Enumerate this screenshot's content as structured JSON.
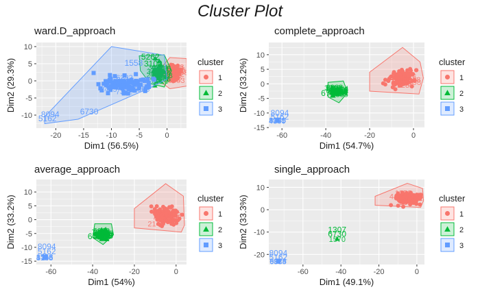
{
  "title": "Cluster Plot",
  "colors": {
    "1": "#F8766D",
    "2": "#00BA38",
    "3": "#619CFF",
    "panel_bg": "#EBEBEB",
    "grid": "#FFFFFF"
  },
  "chart_data": [
    {
      "type": "scatter",
      "title": "ward.D_approach",
      "xlabel": "Dim1 (56.5%)",
      "ylabel": "Dim2 (29.3%)",
      "xlim": [
        -23.5,
        3.5
      ],
      "ylim": [
        -13.8,
        11.2
      ],
      "xticks": [
        -20,
        -15,
        -10,
        -5,
        0
      ],
      "yticks": [
        -10,
        -5,
        0,
        5,
        10
      ],
      "grid": true,
      "legend": {
        "title": "cluster",
        "entries": [
          "1",
          "2",
          "3"
        ],
        "position": "right"
      },
      "labels": [
        {
          "text": "1558",
          "x": -6.0,
          "y": 5.2,
          "cluster": "3"
        },
        {
          "text": "6730",
          "x": -14.0,
          "y": -9.0,
          "cluster": "3"
        },
        {
          "text": "8094",
          "x": -21.0,
          "y": -9.8,
          "cluster": "3"
        },
        {
          "text": "5162",
          "x": -21.5,
          "y": -11.0,
          "cluster": "3"
        },
        {
          "text": "5262",
          "x": -3.0,
          "y": 7.0,
          "cluster": "2"
        },
        {
          "text": "3100",
          "x": -2.5,
          "y": 5.0,
          "cluster": "2"
        }
      ],
      "series": [
        {
          "name": "1",
          "center": [
            1.3,
            2.5
          ],
          "spread": [
            1.1,
            2.6
          ],
          "count": 70,
          "hull": [
            [
              -1.5,
              3.0
            ],
            [
              0.5,
              6.8
            ],
            [
              3.5,
              6.5
            ],
            [
              3.6,
              -1.5
            ],
            [
              0.5,
              -2.3
            ],
            [
              -1.8,
              0.5
            ]
          ]
        },
        {
          "name": "2",
          "center": [
            -1.6,
            2.6
          ],
          "spread": [
            1.0,
            2.8
          ],
          "count": 45,
          "hull": [
            [
              -5.0,
              7.3
            ],
            [
              -0.5,
              7.6
            ],
            [
              0.8,
              3.0
            ],
            [
              -0.5,
              -1.8
            ],
            [
              -3.0,
              -0.8
            ],
            [
              -4.8,
              3.0
            ]
          ]
        },
        {
          "name": "3",
          "center": [
            -8.0,
            -1.0
          ],
          "spread": [
            4.5,
            2.5
          ],
          "count": 90,
          "hull": [
            [
              -10.0,
              10.0
            ],
            [
              -0.5,
              7.5
            ],
            [
              0.0,
              0.5
            ],
            [
              -3.0,
              -2.0
            ],
            [
              -16.0,
              -11.2
            ],
            [
              -22.0,
              -12.5
            ],
            [
              -22.0,
              -10.5
            ]
          ]
        }
      ]
    },
    {
      "type": "scatter",
      "title": "complete_approach",
      "xlabel": "Dim1 (54.7%)",
      "ylabel": "Dim2 (33.2%)",
      "xlim": [
        -66,
        5
      ],
      "ylim": [
        -15.2,
        14.2
      ],
      "xticks": [
        -60,
        -40,
        -20,
        0
      ],
      "yticks": [
        -15,
        -10,
        -5,
        0,
        5,
        10
      ],
      "grid": true,
      "legend": {
        "title": "cluster",
        "entries": [
          "1",
          "2",
          "3"
        ],
        "position": "right"
      },
      "labels": [
        {
          "text": "6730",
          "x": -38,
          "y": -3.2,
          "cluster": "2"
        },
        {
          "text": "8094",
          "x": -61,
          "y": -10.0,
          "cluster": "3"
        },
        {
          "text": "5162",
          "x": -61,
          "y": -11.3,
          "cluster": "3"
        }
      ],
      "series": [
        {
          "name": "1",
          "center": [
            -5.0,
            2.0
          ],
          "spread": [
            6.0,
            3.0
          ],
          "count": 90,
          "hull": [
            [
              -5.0,
              12.5
            ],
            [
              3.0,
              7.5
            ],
            [
              4.5,
              2.0
            ],
            [
              2.5,
              -3.5
            ],
            [
              -20.0,
              -2.5
            ],
            [
              -20.0,
              4.0
            ]
          ]
        },
        {
          "name": "2",
          "center": [
            -35,
            -2.5
          ],
          "spread": [
            3.0,
            1.5
          ],
          "count": 35,
          "hull": [
            [
              -39,
              0.5
            ],
            [
              -32,
              1.0
            ],
            [
              -30,
              -3.0
            ],
            [
              -34,
              -6.5
            ],
            [
              -39,
              -4.5
            ]
          ]
        },
        {
          "name": "3",
          "center": [
            -62,
            -12.5
          ],
          "spread": [
            0.4,
            0.4
          ],
          "count": 4,
          "hull": [
            [
              -62.5,
              -12.0
            ],
            [
              -61.5,
              -12.0
            ],
            [
              -61.5,
              -13.3
            ],
            [
              -62.5,
              -13.3
            ]
          ]
        }
      ]
    },
    {
      "type": "scatter",
      "title": "average_approach",
      "xlabel": "Dim1 (54%)",
      "ylabel": "Dim2 (33.2%)",
      "xlim": [
        -67,
        5
      ],
      "ylim": [
        -16.2,
        14.5
      ],
      "xticks": [
        -60,
        -40,
        -20,
        0
      ],
      "yticks": [
        -15,
        -10,
        -5,
        0,
        5,
        10
      ],
      "grid": true,
      "legend": {
        "title": "cluster",
        "entries": [
          "1",
          "2",
          "3"
        ],
        "position": "right"
      },
      "labels": [
        {
          "text": "6730",
          "x": -38,
          "y": -6.0,
          "cluster": "2"
        },
        {
          "text": "8094",
          "x": -62,
          "y": -9.8,
          "cluster": "3"
        },
        {
          "text": "5162",
          "x": -62,
          "y": -11.5,
          "cluster": "3"
        }
      ],
      "series": [
        {
          "name": "1",
          "center": [
            -5.0,
            1.5
          ],
          "spread": [
            6.0,
            3.0
          ],
          "count": 90,
          "hull": [
            [
              -5.0,
              13.0
            ],
            [
              3.5,
              8.5
            ],
            [
              4.0,
              -2.0
            ],
            [
              2.5,
              -4.5
            ],
            [
              -20.0,
              -3.0
            ],
            [
              -20.0,
              4.0
            ]
          ]
        },
        {
          "name": "2",
          "center": [
            -35,
            -5.0
          ],
          "spread": [
            3.0,
            1.8
          ],
          "count": 35,
          "hull": [
            [
              -39,
              -1.5
            ],
            [
              -31,
              -1.5
            ],
            [
              -30,
              -5.5
            ],
            [
              -35,
              -9.0
            ],
            [
              -40,
              -6.5
            ]
          ]
        },
        {
          "name": "3",
          "center": [
            -63,
            -13.5
          ],
          "spread": [
            0.4,
            0.4
          ],
          "count": 4,
          "hull": [
            [
              -63.8,
              -12.8
            ],
            [
              -62.5,
              -12.8
            ],
            [
              -62.5,
              -14.5
            ],
            [
              -63.8,
              -14.5
            ]
          ]
        }
      ]
    },
    {
      "type": "scatter",
      "title": "single_approach",
      "xlabel": "Dim1 (49.1%)",
      "ylabel": "Dim2 (33.3%)",
      "xlim": [
        -78,
        4
      ],
      "ylim": [
        -24.5,
        13.5
      ],
      "xticks": [
        -60,
        -40,
        -20,
        0
      ],
      "yticks": [
        -20,
        -10,
        0,
        10
      ],
      "grid": true,
      "legend": {
        "title": "cluster",
        "entries": [
          "1",
          "2",
          "3"
        ],
        "position": "right"
      },
      "labels": [
        {
          "text": "1307",
          "x": -42,
          "y": -9.0,
          "cluster": "2"
        },
        {
          "text": "6730",
          "x": -42,
          "y": -10.8,
          "cluster": "2"
        },
        {
          "text": "8094",
          "x": -73,
          "y": -19.5,
          "cluster": "3"
        },
        {
          "text": "5162",
          "x": -73,
          "y": -21.3,
          "cluster": "3"
        }
      ],
      "series": [
        {
          "name": "1",
          "center": [
            -5.0,
            5.0
          ],
          "spread": [
            6.0,
            2.5
          ],
          "count": 90,
          "hull": [
            [
              -5.0,
              11.8
            ],
            [
              3.0,
              9.5
            ],
            [
              3.5,
              4.0
            ],
            [
              2.0,
              1.0
            ],
            [
              -22.0,
              2.0
            ],
            [
              -22.0,
              6.0
            ]
          ]
        },
        {
          "name": "2",
          "center": [
            -42,
            -13.0
          ],
          "spread": [
            0.2,
            0.2
          ],
          "count": 1,
          "hull": []
        },
        {
          "name": "3",
          "center": [
            -73,
            -23.0
          ],
          "spread": [
            0.3,
            0.3
          ],
          "count": 3,
          "hull": [
            [
              -73.6,
              -22.5
            ],
            [
              -72.4,
              -22.5
            ],
            [
              -72.4,
              -23.6
            ],
            [
              -73.6,
              -23.6
            ]
          ]
        }
      ]
    }
  ]
}
